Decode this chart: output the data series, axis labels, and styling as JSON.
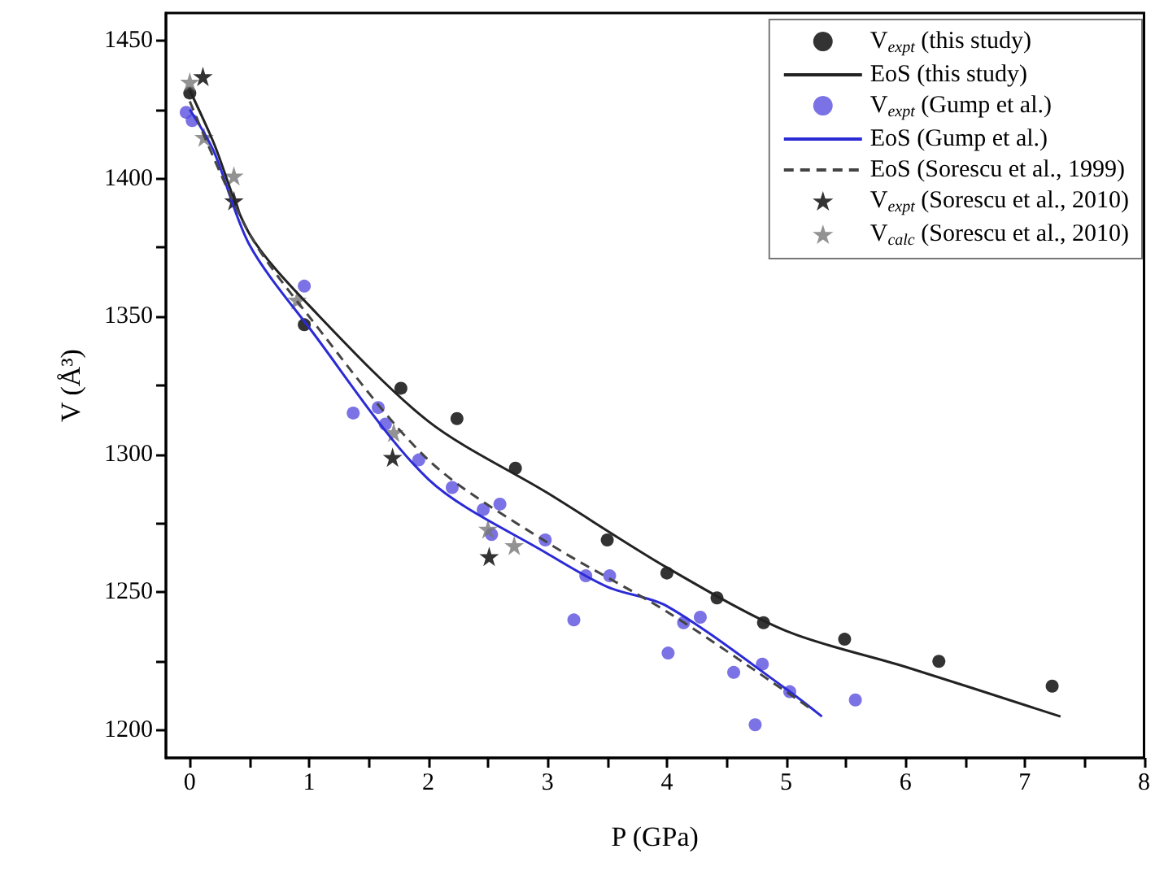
{
  "chart_data": {
    "type": "scatter",
    "xlabel": "P (GPa)",
    "ylabel": "V (Å³)",
    "xlim": [
      -0.2,
      8
    ],
    "ylim": [
      1190,
      1460
    ],
    "xticks": [
      0,
      {
        "value": 0.5,
        "label": null
      },
      1,
      {
        "value": 1.5,
        "label": null
      },
      2,
      {
        "value": 2.5,
        "label": null
      },
      3,
      {
        "value": 3.5,
        "label": null
      },
      4,
      {
        "value": 4.5,
        "label": null
      },
      5,
      {
        "value": 5.5,
        "label": null
      },
      6,
      {
        "value": 6.5,
        "label": null
      },
      7,
      {
        "value": 7.5,
        "label": null
      },
      8
    ],
    "yticks": [
      1200,
      {
        "value": 1225,
        "label": null
      },
      1250,
      {
        "value": 1275,
        "label": null
      },
      1300,
      {
        "value": 1325,
        "label": null
      },
      1350,
      {
        "value": 1375,
        "label": null
      },
      1400,
      {
        "value": 1425,
        "label": null
      },
      1450
    ],
    "grid": false,
    "legend": "top right",
    "series": [
      {
        "name": "V$_{expt}$ (this study)",
        "marker": "circle",
        "color": "#000000",
        "x": [
          0,
          0.96,
          1.77,
          2.24,
          2.73,
          3.5,
          4.0,
          4.42,
          4.81,
          5.49,
          6.28,
          7.23
        ],
        "values": [
          1431,
          1347,
          1324,
          1313,
          1295,
          1269,
          1257,
          1248,
          1239,
          1233,
          1225,
          1216
        ]
      },
      {
        "name": "EoS (this study)",
        "type": "line",
        "marker": "none",
        "line_style": "solid",
        "color": "#222222",
        "x": [
          0,
          0.2,
          0.5,
          1,
          2,
          3,
          4,
          5,
          6,
          7.3
        ],
        "values": [
          1432,
          1413,
          1380,
          1354,
          1312,
          1286,
          1259,
          1236,
          1223,
          1205
        ]
      },
      {
        "name": "V$_{expt}$ (Gump et al.)",
        "marker": "circle",
        "color": "#5a4fe0",
        "x": [
          -0.03,
          0.02,
          0.96,
          1.37,
          1.58,
          1.64,
          1.92,
          2.2,
          2.46,
          2.6,
          2.53,
          2.98,
          3.32,
          3.52,
          3.22,
          4.14,
          4.28,
          4.01,
          4.8,
          4.56,
          5.03,
          4.74,
          5.58
        ],
        "values": [
          1424,
          1421,
          1361,
          1315,
          1317,
          1311,
          1298,
          1288,
          1280,
          1282,
          1271,
          1269,
          1256,
          1256,
          1240,
          1239,
          1241,
          1228,
          1224,
          1221,
          1214,
          1202,
          1211
        ]
      },
      {
        "name": "EoS (Gump et al.)",
        "type": "line",
        "marker": "none",
        "line_style": "solid",
        "color": "#2b2bd6",
        "x": [
          0,
          0.2,
          0.5,
          1,
          2,
          3,
          3.5,
          4,
          5,
          5.3
        ],
        "values": [
          1425,
          1410,
          1376,
          1346,
          1291,
          1264,
          1252,
          1245,
          1215,
          1205
        ]
      },
      {
        "name": "EoS (Sorescu et al., 1999)",
        "type": "line",
        "marker": "none",
        "line_style": "dashed",
        "color": "#444444",
        "x": [
          0,
          0.5,
          1,
          2,
          3,
          4,
          5,
          5.2
        ],
        "values": [
          1428,
          1380,
          1350,
          1298,
          1268,
          1243,
          1214,
          1208
        ]
      },
      {
        "name": "V$_{expt}$ (Sorescu et al., 2010)",
        "marker": "star",
        "color": "#000000",
        "x": [
          0.11,
          0.37,
          1.7,
          2.51
        ],
        "values": [
          1437,
          1392,
          1299,
          1263
        ]
      },
      {
        "name": "V$_{calc}$ (Sorescu et al., 2010)",
        "marker": "star",
        "color": "#777777",
        "x": [
          0,
          0.12,
          0.37,
          0.9,
          1.71,
          2.5,
          2.72
        ],
        "values": [
          1435,
          1415,
          1401,
          1356,
          1308,
          1273,
          1267
        ]
      }
    ]
  }
}
